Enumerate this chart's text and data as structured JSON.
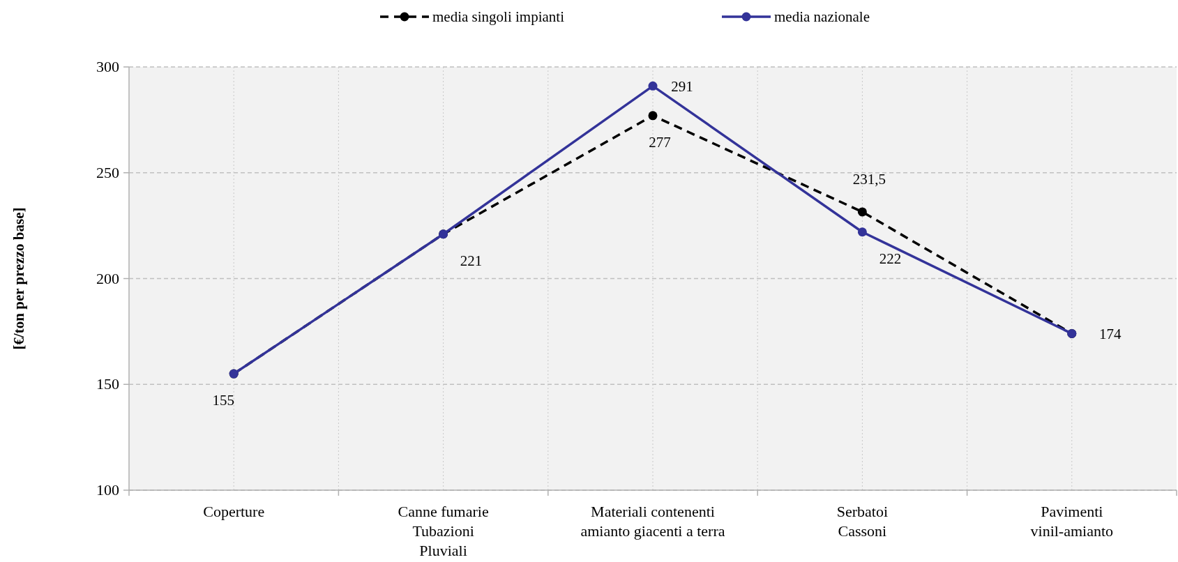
{
  "chart_data": {
    "type": "line",
    "ylabel": "[€/ton per prezzo base]",
    "categories": [
      "Coperture",
      "Canne fumarie\nTubazioni\nPluviali",
      "Materiali contenenti\namianto giacenti a terra",
      "Serbatoi\nCassoni",
      "Pavimenti\nvinil-amianto"
    ],
    "series": [
      {
        "name": "media singoli impianti",
        "color": "#000000",
        "line_style": "dashed",
        "marker": "circle",
        "values": [
          155,
          221,
          277,
          231.5,
          174
        ],
        "value_labels": [
          null,
          null,
          "277",
          "231,5",
          null
        ]
      },
      {
        "name": "media nazionale",
        "color": "#333399",
        "line_style": "solid",
        "marker": "circle",
        "values": [
          155,
          221,
          291,
          222,
          174
        ],
        "value_labels": [
          "155",
          "221",
          "291",
          "222",
          "174"
        ]
      }
    ],
    "ylim": [
      100,
      300
    ],
    "yticks": [
      100,
      150,
      200,
      250,
      300
    ],
    "grid": true,
    "legend": "top"
  }
}
